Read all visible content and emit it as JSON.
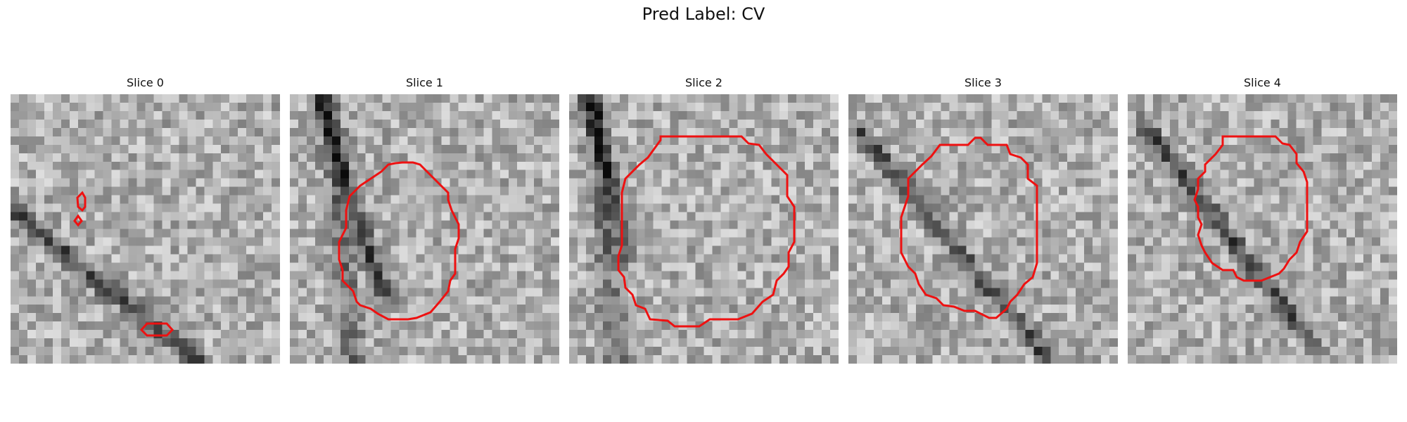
{
  "figure": {
    "title": "Pred Label: CV"
  },
  "contour_color": "#ee1111",
  "panels": [
    {
      "title": "Slice 0"
    },
    {
      "title": "Slice 1"
    },
    {
      "title": "Slice 2"
    },
    {
      "title": "Slice 3"
    },
    {
      "title": "Slice 4"
    }
  ]
}
